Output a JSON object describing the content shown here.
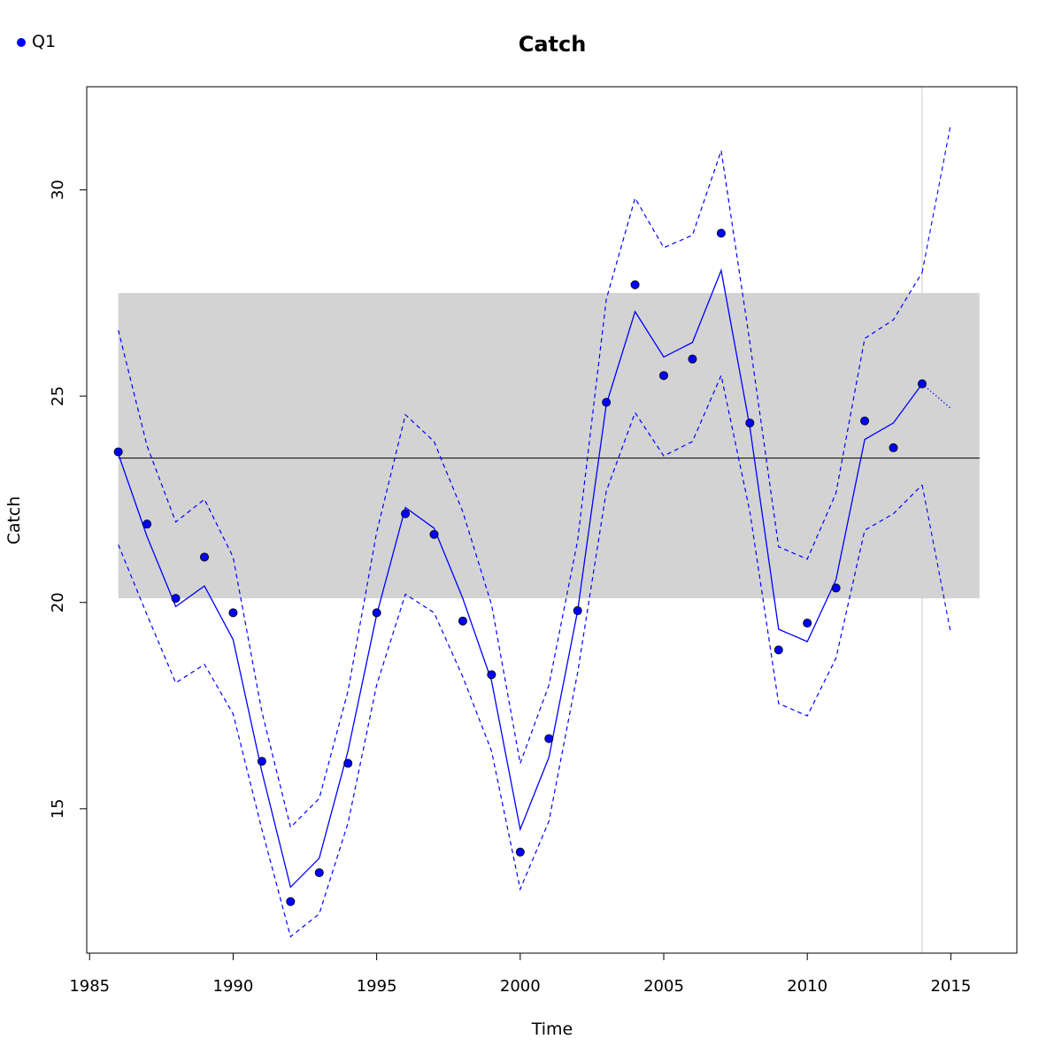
{
  "chart_data": {
    "type": "line",
    "title": "Catch",
    "xlabel": "Time",
    "ylabel": "Catch",
    "xlim": [
      1984.9,
      2017.3
    ],
    "ylim": [
      11.5,
      32.5
    ],
    "x_ticks": [
      1985,
      1990,
      1995,
      2000,
      2005,
      2010,
      2015
    ],
    "y_ticks": [
      15,
      20,
      25,
      30
    ],
    "legend": {
      "position": "top-left",
      "entries": [
        "Q1"
      ]
    },
    "colors": {
      "series": "#0000ff",
      "band": "#d3d3d3",
      "mean_line": "#000000",
      "vline": "#d3d3d3"
    },
    "mean_line": 23.5,
    "band": {
      "x": [
        1986,
        2016
      ],
      "y": [
        20.1,
        27.5
      ]
    },
    "vline_x": 2014,
    "series": [
      {
        "name": "Q1",
        "points": {
          "x": [
            1986,
            1987,
            1988,
            1989,
            1990,
            1991,
            1992,
            1993,
            1994,
            1995,
            1996,
            1997,
            1998,
            1999,
            2000,
            2001,
            2002,
            2003,
            2004,
            2005,
            2006,
            2007,
            2008,
            2009,
            2010,
            2011,
            2012,
            2013,
            2014
          ],
          "y": [
            23.65,
            21.9,
            20.1,
            21.1,
            19.75,
            16.15,
            12.75,
            13.45,
            16.1,
            19.75,
            22.15,
            21.65,
            19.55,
            18.25,
            13.95,
            16.7,
            19.8,
            24.85,
            27.7,
            25.5,
            25.9,
            28.95,
            24.35,
            18.85,
            19.5,
            20.35,
            24.4,
            23.75,
            25.3
          ]
        },
        "fit": {
          "x": [
            1986,
            1987,
            1988,
            1989,
            1990,
            1991,
            1992,
            1993,
            1994,
            1995,
            1996,
            1997,
            1998,
            1999,
            2000,
            2001,
            2002,
            2003,
            2004,
            2005,
            2006,
            2007,
            2008,
            2009,
            2010,
            2011,
            2012,
            2013,
            2014
          ],
          "y": [
            23.6,
            21.6,
            19.9,
            20.4,
            19.1,
            15.9,
            13.1,
            13.8,
            16.4,
            19.7,
            22.3,
            21.8,
            20.1,
            18.1,
            14.5,
            16.25,
            19.8,
            24.8,
            27.05,
            25.95,
            26.3,
            28.05,
            24.25,
            19.35,
            19.05,
            20.55,
            23.95,
            24.35,
            25.3
          ]
        },
        "upper": {
          "x": [
            1986,
            1987,
            1988,
            1989,
            1990,
            1991,
            1992,
            1993,
            1994,
            1995,
            1996,
            1997,
            1998,
            1999,
            2000,
            2001,
            2002,
            2003,
            2004,
            2005,
            2006,
            2007,
            2008,
            2009,
            2010,
            2011,
            2012,
            2013,
            2014
          ],
          "y": [
            26.6,
            23.8,
            21.95,
            22.5,
            21.1,
            17.35,
            14.55,
            15.25,
            17.85,
            21.7,
            24.55,
            23.9,
            22.2,
            19.95,
            16.1,
            18.0,
            21.5,
            27.35,
            29.8,
            28.6,
            28.9,
            30.95,
            26.3,
            21.35,
            21.05,
            22.65,
            26.4,
            26.85,
            28.0
          ]
        },
        "lower": {
          "x": [
            1986,
            1987,
            1988,
            1989,
            1990,
            1991,
            1992,
            1993,
            1994,
            1995,
            1996,
            1997,
            1998,
            1999,
            2000,
            2001,
            2002,
            2003,
            2004,
            2005,
            2006,
            2007,
            2008,
            2009,
            2010,
            2011,
            2012,
            2013,
            2014
          ],
          "y": [
            21.4,
            19.7,
            18.05,
            18.5,
            17.3,
            14.5,
            11.9,
            12.45,
            14.65,
            18.0,
            20.2,
            19.75,
            18.2,
            16.4,
            13.05,
            14.7,
            18.3,
            22.7,
            24.6,
            23.55,
            23.9,
            25.5,
            22.2,
            17.55,
            17.25,
            18.65,
            21.75,
            22.15,
            22.85
          ]
        },
        "forecast": {
          "x": [
            2014,
            2015
          ],
          "y": [
            25.3,
            24.7
          ]
        },
        "forecast_upper": {
          "x": [
            2014,
            2015
          ],
          "y": [
            28.0,
            31.6
          ]
        },
        "forecast_lower": {
          "x": [
            2014,
            2015
          ],
          "y": [
            22.85,
            19.25
          ]
        }
      }
    ]
  }
}
